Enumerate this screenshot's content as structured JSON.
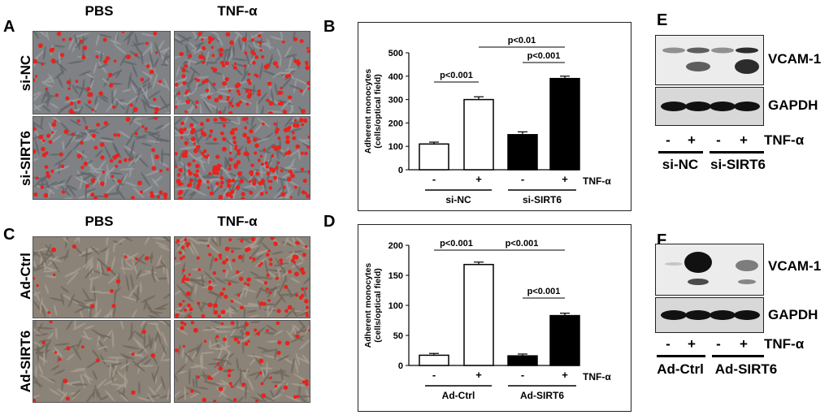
{
  "panels": {
    "A": {
      "letter": "A",
      "col1": "PBS",
      "col2": "TNF-α",
      "row1": "si-NC",
      "row2": "si-SIRT6"
    },
    "B": {
      "letter": "B"
    },
    "C": {
      "letter": "C",
      "col1": "PBS",
      "col2": "TNF-α",
      "row1": "Ad-Ctrl",
      "row2": "Ad-SIRT6"
    },
    "D": {
      "letter": "D"
    },
    "E": {
      "letter": "E",
      "band1": "VCAM-1",
      "band2": "GAPDH",
      "treatment": "TNF-α",
      "signs": [
        "-",
        "+",
        "-",
        "+"
      ],
      "group1": "si-NC",
      "group2": "si-SIRT6"
    },
    "F": {
      "letter": "F",
      "band1": "VCAM-1",
      "band2": "GAPDH",
      "treatment": "TNF-α",
      "signs": [
        "-",
        "+",
        "-",
        "+"
      ],
      "group1": "Ad-Ctrl",
      "group2": "Ad-SIRT6"
    }
  },
  "colors": {
    "bar_white": "#ffffff",
    "bar_black": "#000000",
    "cell_red": "#e8231c",
    "micro_gray": "#7f8184",
    "micro_brown": "#8c8378"
  },
  "chart_data": [
    {
      "type": "bar",
      "ylabel": "Adherent monocytes\n(cells/optical field)",
      "ylim": [
        0,
        500
      ],
      "yticks": [
        "0",
        "100",
        "200",
        "300",
        "400",
        "500"
      ],
      "treatment_label": "TNF-α",
      "signs": [
        "-",
        "+",
        "-",
        "+"
      ],
      "groups": [
        "si-NC",
        "si-SIRT6"
      ],
      "values": [
        110,
        300,
        150,
        390
      ],
      "errors": [
        8,
        12,
        12,
        10
      ],
      "bar_colors": [
        "white",
        "white",
        "black",
        "black"
      ],
      "annotations": [
        "p<0.001",
        "p<0.001",
        "p<0.01"
      ]
    },
    {
      "type": "bar",
      "ylabel": "Adherent monocytes\n(cells/optical field)",
      "ylim": [
        0,
        200
      ],
      "yticks": [
        "0",
        "50",
        "100",
        "150",
        "200"
      ],
      "treatment_label": "TNF-α",
      "signs": [
        "-",
        "+",
        "-",
        "+"
      ],
      "groups": [
        "Ad-Ctrl",
        "Ad-SIRT6"
      ],
      "values": [
        17,
        168,
        16,
        83
      ],
      "errors": [
        3,
        4,
        3,
        4
      ],
      "bar_colors": [
        "white",
        "white",
        "black",
        "black"
      ],
      "annotations": [
        "p<0.001",
        "p<0.001",
        "p<0.001"
      ]
    }
  ]
}
